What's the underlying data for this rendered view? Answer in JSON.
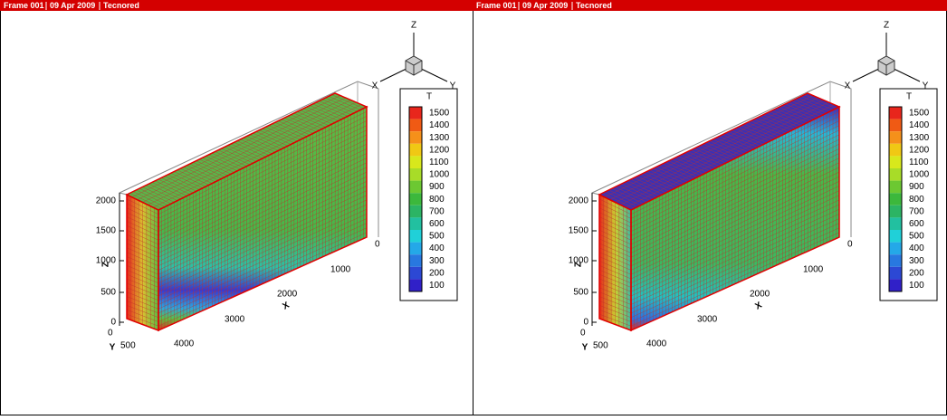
{
  "frames": [
    {
      "header": [
        "Frame 001",
        "09 Apr 2009",
        "Tecnored"
      ],
      "triad": {
        "z": "Z",
        "x": "X",
        "y": "Y"
      },
      "legend": {
        "title": "T",
        "levels": [
          "1500",
          "1400",
          "1300",
          "1200",
          "1100",
          "1000",
          "900",
          "800",
          "700",
          "600",
          "500",
          "400",
          "300",
          "200",
          "100"
        ],
        "colors": [
          "#e8261c",
          "#f05a14",
          "#f5901a",
          "#f0c814",
          "#d8e81c",
          "#a8dc28",
          "#6cc832",
          "#3cb83c",
          "#2cb464",
          "#22c0a0",
          "#20d0d8",
          "#24a8e8",
          "#2878e0",
          "#2c48d4",
          "#3020c8"
        ]
      },
      "z_axis": {
        "label": "Z",
        "ticks": [
          "2000",
          "1500",
          "1000",
          "500",
          "0"
        ]
      },
      "x_axis": {
        "label": "X",
        "ticks": [
          "0",
          "1000",
          "2000",
          "3000",
          "4000"
        ]
      },
      "y_axis": {
        "label": "Y",
        "ticks": [
          "0",
          "500"
        ]
      }
    },
    {
      "header": [
        "Frame 001",
        "09 Apr 2009",
        "Tecnored"
      ],
      "triad": {
        "z": "Z",
        "x": "X",
        "y": "Y"
      },
      "legend": {
        "title": "T",
        "levels": [
          "1500",
          "1400",
          "1300",
          "1200",
          "1100",
          "1000",
          "900",
          "800",
          "700",
          "600",
          "500",
          "400",
          "300",
          "200",
          "100"
        ],
        "colors": [
          "#e8261c",
          "#f05a14",
          "#f5901a",
          "#f0c814",
          "#d8e81c",
          "#a8dc28",
          "#6cc832",
          "#3cb83c",
          "#2cb464",
          "#22c0a0",
          "#20d0d8",
          "#24a8e8",
          "#2878e0",
          "#2c48d4",
          "#3020c8"
        ]
      },
      "z_axis": {
        "label": "Z",
        "ticks": [
          "2000",
          "1500",
          "1000",
          "500",
          "0"
        ]
      },
      "x_axis": {
        "label": "X",
        "ticks": [
          "0",
          "1000",
          "2000",
          "3000",
          "4000"
        ]
      },
      "y_axis": {
        "label": "Y",
        "ticks": [
          "0",
          "500"
        ]
      }
    }
  ]
}
